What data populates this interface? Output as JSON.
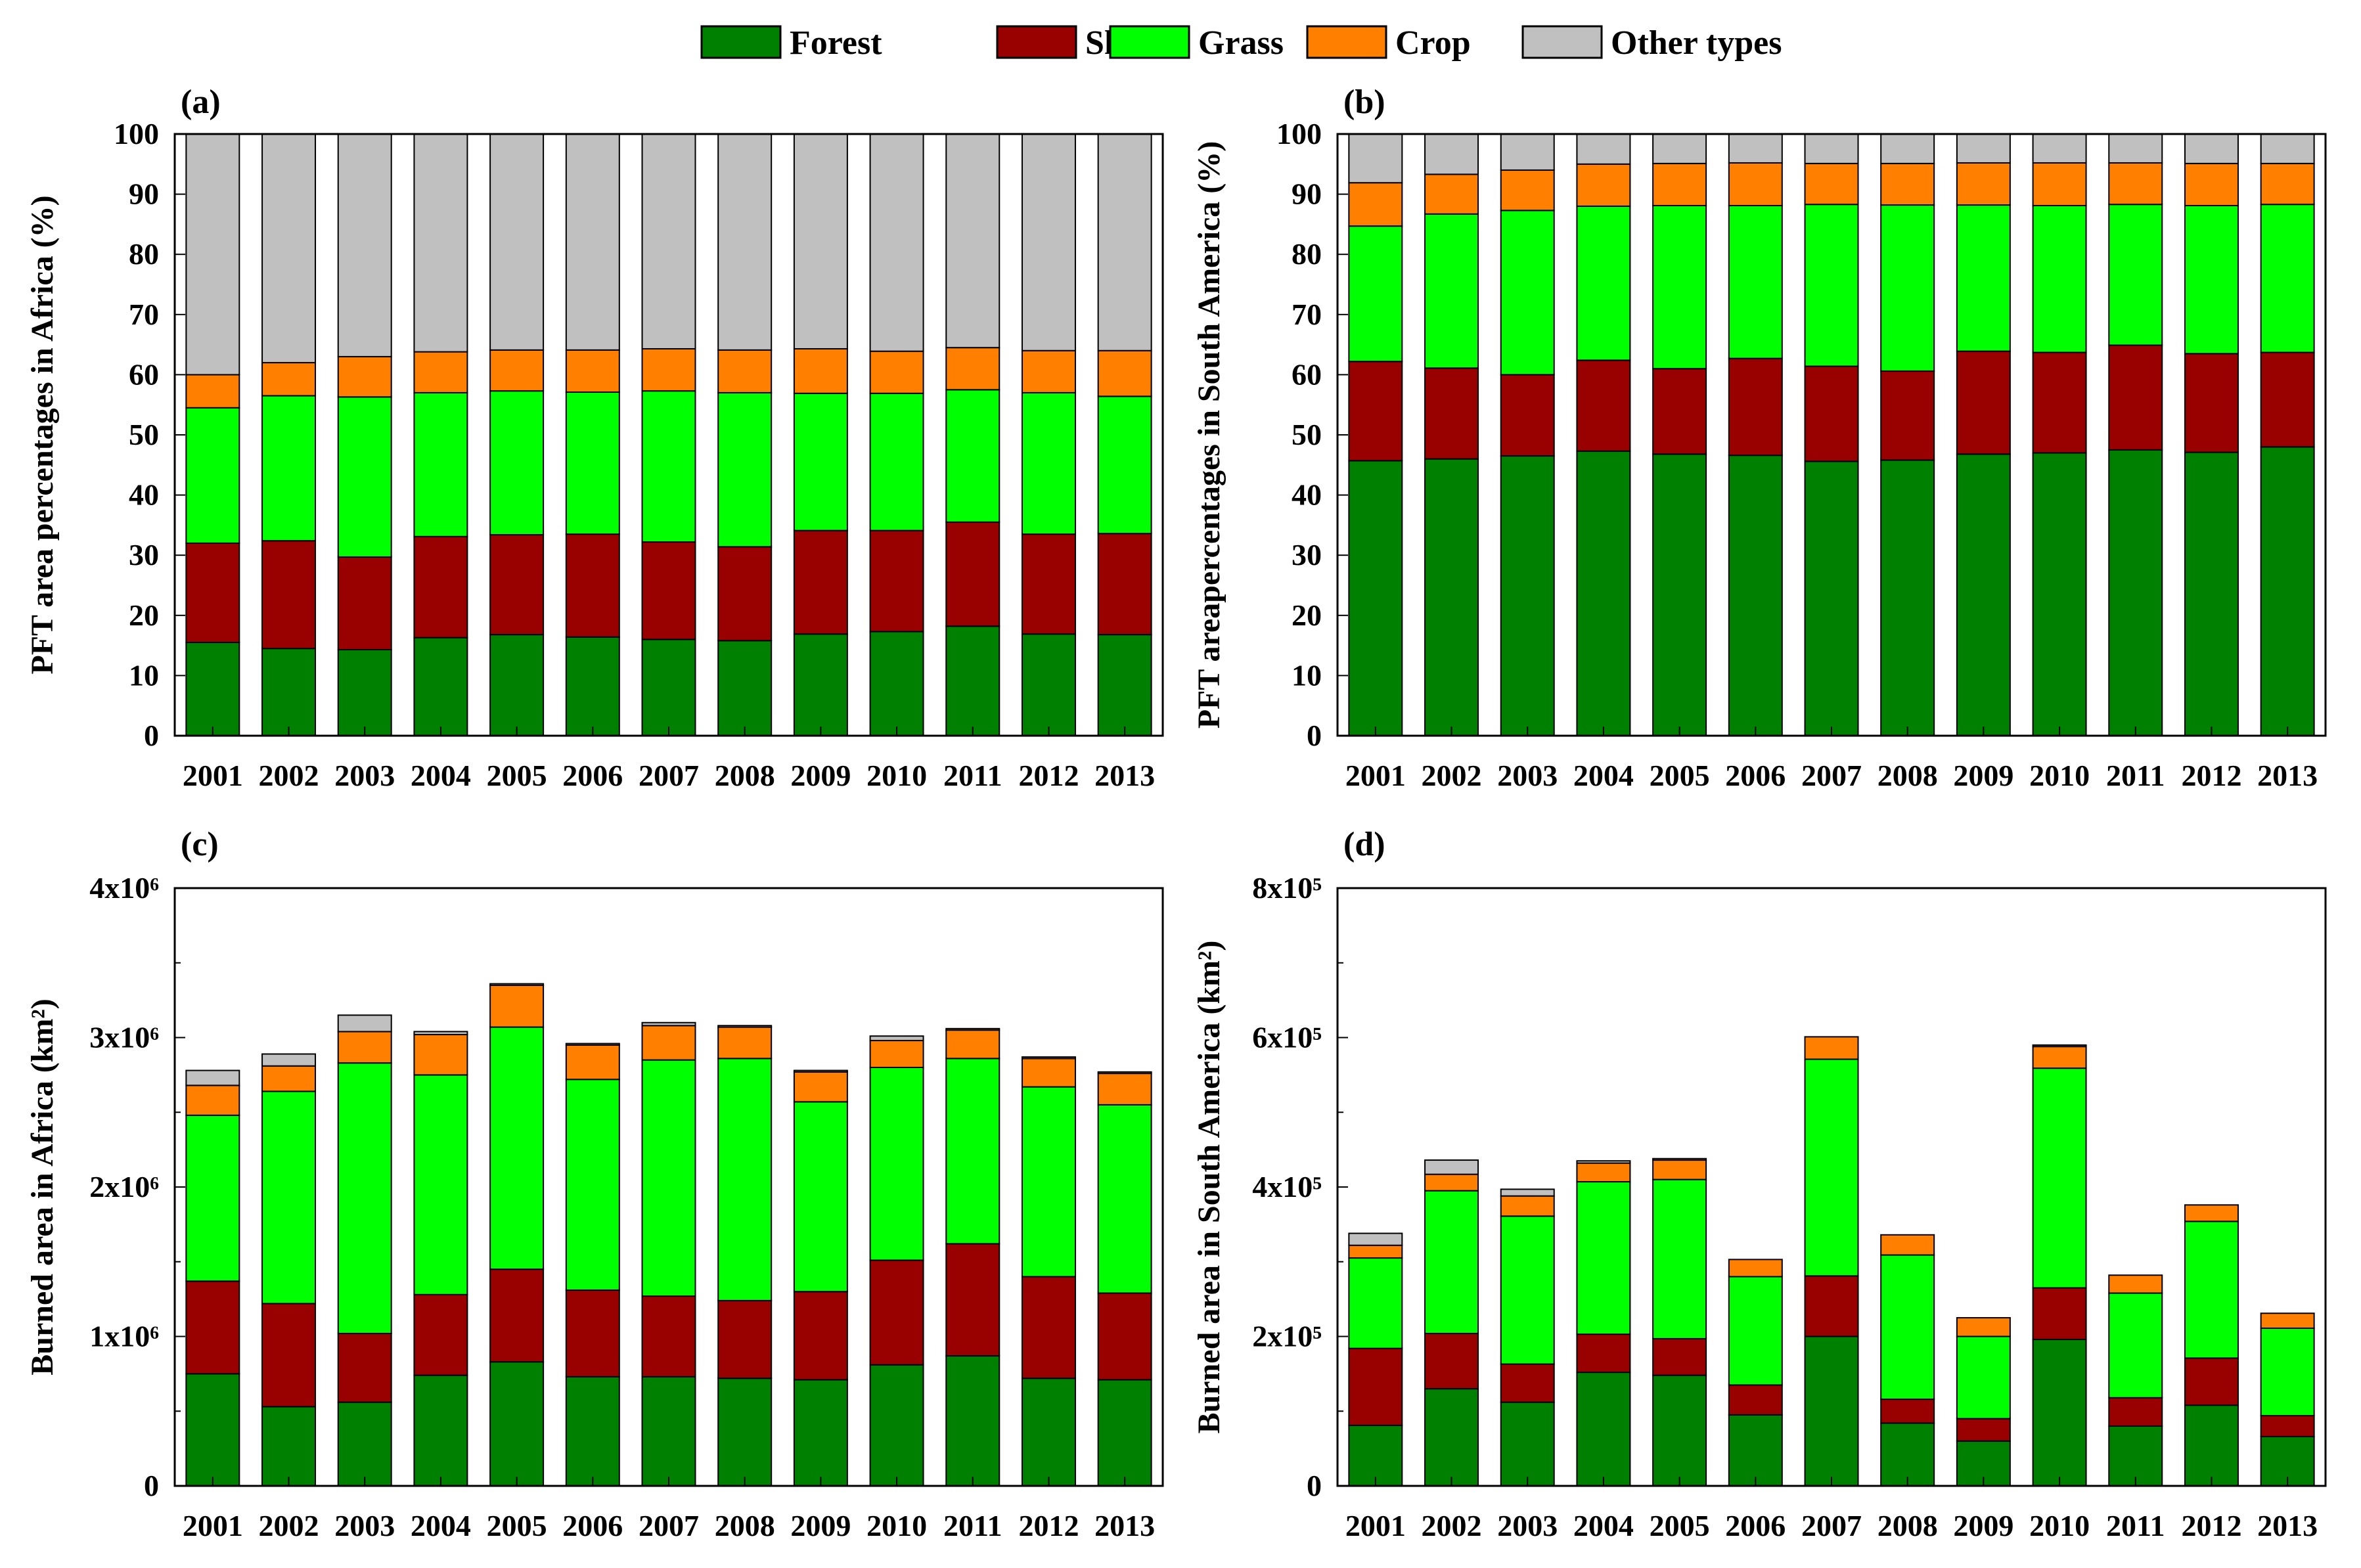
{
  "legend": {
    "items": [
      {
        "key": "forest",
        "label": "Forest",
        "color": "#008000"
      },
      {
        "key": "shrub",
        "label": "Shrub",
        "color": "#990000"
      },
      {
        "key": "grass",
        "label": "Grass",
        "color": "#00ff00"
      },
      {
        "key": "crop",
        "label": "Crop",
        "color": "#ff8000"
      },
      {
        "key": "other",
        "label": "Other types",
        "color": "#c0c0c0"
      }
    ]
  },
  "chart_data": [
    {
      "panel": "(a)",
      "type": "bar",
      "stacked": true,
      "ylabel": "PFT area percentages in Africa (%)",
      "ylim": [
        0,
        100
      ],
      "yticks": [
        "0",
        "10",
        "20",
        "30",
        "40",
        "50",
        "60",
        "70",
        "80",
        "90",
        "100"
      ],
      "categories": [
        "2001",
        "2002",
        "2003",
        "2004",
        "2005",
        "2006",
        "2007",
        "2008",
        "2009",
        "2010",
        "2011",
        "2012",
        "2013"
      ],
      "series": [
        {
          "name": "Forest",
          "values": [
            15.5,
            14.5,
            14.3,
            16.3,
            16.8,
            16.4,
            16.0,
            15.8,
            16.9,
            17.3,
            18.2,
            16.9,
            16.8
          ]
        },
        {
          "name": "Shrub",
          "values": [
            16.5,
            17.9,
            15.4,
            16.8,
            16.6,
            17.1,
            16.2,
            15.6,
            17.2,
            16.8,
            17.3,
            16.6,
            16.8
          ]
        },
        {
          "name": "Grass",
          "values": [
            22.5,
            24.1,
            26.6,
            23.9,
            23.9,
            23.6,
            25.1,
            25.6,
            22.8,
            22.8,
            22.0,
            23.5,
            22.8
          ]
        },
        {
          "name": "Crop",
          "values": [
            5.5,
            5.5,
            6.7,
            6.8,
            6.8,
            7.0,
            7.0,
            7.1,
            7.4,
            7.0,
            7.0,
            7.0,
            7.6
          ]
        },
        {
          "name": "Other types",
          "values": [
            40.0,
            38.0,
            37.0,
            36.2,
            35.9,
            35.9,
            35.7,
            35.9,
            35.7,
            36.1,
            35.5,
            36.0,
            36.0
          ]
        }
      ]
    },
    {
      "panel": "(b)",
      "type": "bar",
      "stacked": true,
      "ylabel": "PFT areapercentages  in South America (%)",
      "ylim": [
        0,
        100
      ],
      "yticks": [
        "0",
        "10",
        "20",
        "30",
        "40",
        "50",
        "60",
        "70",
        "80",
        "90",
        "100"
      ],
      "categories": [
        "2001",
        "2002",
        "2003",
        "2004",
        "2005",
        "2006",
        "2007",
        "2008",
        "2009",
        "2010",
        "2011",
        "2012",
        "2013"
      ],
      "series": [
        {
          "name": "Forest",
          "values": [
            45.7,
            46.0,
            46.5,
            47.3,
            46.8,
            46.6,
            45.6,
            45.8,
            46.8,
            47.0,
            47.5,
            47.1,
            48.0
          ]
        },
        {
          "name": "Shrub",
          "values": [
            16.5,
            15.1,
            13.5,
            15.1,
            14.2,
            16.1,
            15.8,
            14.8,
            17.1,
            16.7,
            17.4,
            16.4,
            15.7
          ]
        },
        {
          "name": "Grass",
          "values": [
            22.5,
            25.6,
            27.3,
            25.6,
            27.1,
            25.4,
            26.9,
            27.6,
            24.3,
            24.4,
            23.4,
            24.6,
            24.6
          ]
        },
        {
          "name": "Crop",
          "values": [
            7.2,
            6.6,
            6.7,
            7.0,
            7.0,
            7.1,
            6.8,
            6.9,
            7.0,
            7.1,
            6.9,
            7.0,
            6.8
          ]
        },
        {
          "name": "Other types",
          "values": [
            8.1,
            6.7,
            6.0,
            5.0,
            4.9,
            4.8,
            4.9,
            4.9,
            4.8,
            4.8,
            4.8,
            4.9,
            4.9
          ]
        }
      ]
    },
    {
      "panel": "(c)",
      "type": "bar",
      "stacked": true,
      "ylabel": "Burned area in Africa (km²)",
      "ylim": [
        0,
        4000000
      ],
      "yticks": [
        "0",
        "1x10⁶",
        "2x10⁶",
        "3x10⁶",
        "4x10⁶"
      ],
      "categories": [
        "2001",
        "2002",
        "2003",
        "2004",
        "2005",
        "2006",
        "2007",
        "2008",
        "2009",
        "2010",
        "2011",
        "2012",
        "2013"
      ],
      "series": [
        {
          "name": "Forest",
          "values": [
            750000,
            530000,
            560000,
            740000,
            830000,
            730000,
            730000,
            720000,
            710000,
            810000,
            870000,
            720000,
            710000
          ]
        },
        {
          "name": "Shrub",
          "values": [
            620000,
            690000,
            460000,
            540000,
            620000,
            580000,
            540000,
            520000,
            590000,
            700000,
            750000,
            680000,
            580000
          ]
        },
        {
          "name": "Grass",
          "values": [
            1110000,
            1420000,
            1810000,
            1470000,
            1620000,
            1410000,
            1580000,
            1620000,
            1270000,
            1290000,
            1240000,
            1270000,
            1260000
          ]
        },
        {
          "name": "Crop",
          "values": [
            200000,
            170000,
            210000,
            270000,
            280000,
            230000,
            230000,
            210000,
            200000,
            180000,
            190000,
            190000,
            210000
          ]
        },
        {
          "name": "Other types",
          "values": [
            100000,
            80000,
            110000,
            20000,
            10000,
            10000,
            20000,
            10000,
            10000,
            30000,
            10000,
            10000,
            10000
          ]
        }
      ]
    },
    {
      "panel": "(d)",
      "type": "bar",
      "stacked": true,
      "ylabel": "Burned area in South America (km²)",
      "ylim": [
        0,
        800000
      ],
      "yticks": [
        "0",
        "2x10⁵",
        "4x10⁵",
        "6x10⁵",
        "8x10⁵"
      ],
      "categories": [
        "2001",
        "2002",
        "2003",
        "2004",
        "2005",
        "2006",
        "2007",
        "2008",
        "2009",
        "2010",
        "2011",
        "2012",
        "2013"
      ],
      "series": [
        {
          "name": "Forest",
          "values": [
            81000,
            130000,
            112000,
            152000,
            148000,
            95000,
            200000,
            84000,
            60000,
            196000,
            80000,
            108000,
            66000
          ]
        },
        {
          "name": "Shrub",
          "values": [
            103000,
            74000,
            51000,
            51000,
            49000,
            40000,
            81000,
            32000,
            30000,
            69000,
            38000,
            63000,
            28000
          ]
        },
        {
          "name": "Grass",
          "values": [
            121000,
            191000,
            198000,
            204000,
            213000,
            145000,
            290000,
            193000,
            110000,
            294000,
            140000,
            183000,
            117000
          ]
        },
        {
          "name": "Crop",
          "values": [
            17000,
            22000,
            27000,
            25000,
            26000,
            23000,
            30000,
            27000,
            25000,
            29000,
            24000,
            22000,
            20000
          ]
        },
        {
          "name": "Other types",
          "values": [
            16000,
            19000,
            9000,
            3000,
            2000,
            0,
            0,
            0,
            0,
            2000,
            0,
            0,
            0
          ]
        }
      ]
    }
  ]
}
